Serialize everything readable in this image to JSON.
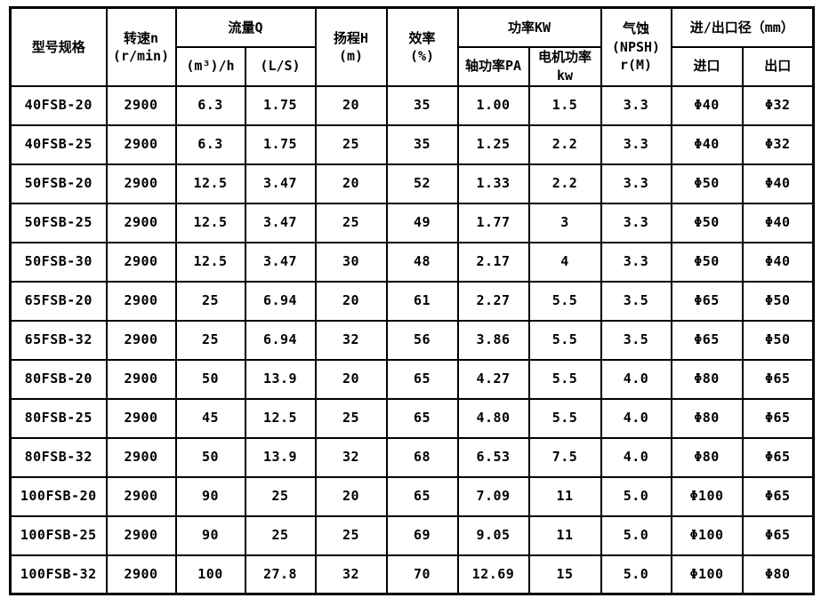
{
  "table": {
    "headers": {
      "model": "型号规格",
      "speed": "转速n\n(r/min)",
      "flow_group": "流量Q",
      "flow_m3h": "(m³)/h",
      "flow_ls": "(L/S)",
      "head": "扬程H\n(m)",
      "efficiency": "效率\n(%)",
      "power_group": "功率KW",
      "power_shaft": "轴功率PA",
      "power_motor": "电机功率\nkw",
      "npsh": "气蚀\n(NPSH)\nr(M)",
      "ports_group": "进/出口径（mm）",
      "port_inlet": "进口",
      "port_outlet": "出口"
    },
    "rows": [
      [
        "40FSB-20",
        "2900",
        "6.3",
        "1.75",
        "20",
        "35",
        "1.00",
        "1.5",
        "3.3",
        "Φ40",
        "Φ32"
      ],
      [
        "40FSB-25",
        "2900",
        "6.3",
        "1.75",
        "25",
        "35",
        "1.25",
        "2.2",
        "3.3",
        "Φ40",
        "Φ32"
      ],
      [
        "50FSB-20",
        "2900",
        "12.5",
        "3.47",
        "20",
        "52",
        "1.33",
        "2.2",
        "3.3",
        "Φ50",
        "Φ40"
      ],
      [
        "50FSB-25",
        "2900",
        "12.5",
        "3.47",
        "25",
        "49",
        "1.77",
        "3",
        "3.3",
        "Φ50",
        "Φ40"
      ],
      [
        "50FSB-30",
        "2900",
        "12.5",
        "3.47",
        "30",
        "48",
        "2.17",
        "4",
        "3.3",
        "Φ50",
        "Φ40"
      ],
      [
        "65FSB-20",
        "2900",
        "25",
        "6.94",
        "20",
        "61",
        "2.27",
        "5.5",
        "3.5",
        "Φ65",
        "Φ50"
      ],
      [
        "65FSB-32",
        "2900",
        "25",
        "6.94",
        "32",
        "56",
        "3.86",
        "5.5",
        "3.5",
        "Φ65",
        "Φ50"
      ],
      [
        "80FSB-20",
        "2900",
        "50",
        "13.9",
        "20",
        "65",
        "4.27",
        "5.5",
        "4.0",
        "Φ80",
        "Φ65"
      ],
      [
        "80FSB-25",
        "2900",
        "45",
        "12.5",
        "25",
        "65",
        "4.80",
        "5.5",
        "4.0",
        "Φ80",
        "Φ65"
      ],
      [
        "80FSB-32",
        "2900",
        "50",
        "13.9",
        "32",
        "68",
        "6.53",
        "7.5",
        "4.0",
        "Φ80",
        "Φ65"
      ],
      [
        "100FSB-20",
        "2900",
        "90",
        "25",
        "20",
        "65",
        "7.09",
        "11",
        "5.0",
        "Φ100",
        "Φ65"
      ],
      [
        "100FSB-25",
        "2900",
        "90",
        "25",
        "25",
        "69",
        "9.05",
        "11",
        "5.0",
        "Φ100",
        "Φ65"
      ],
      [
        "100FSB-32",
        "2900",
        "100",
        "27.8",
        "32",
        "70",
        "12.69",
        "15",
        "5.0",
        "Φ100",
        "Φ80"
      ]
    ]
  },
  "colors": {
    "border": "#000000",
    "background": "#ffffff",
    "text": "#000000"
  }
}
